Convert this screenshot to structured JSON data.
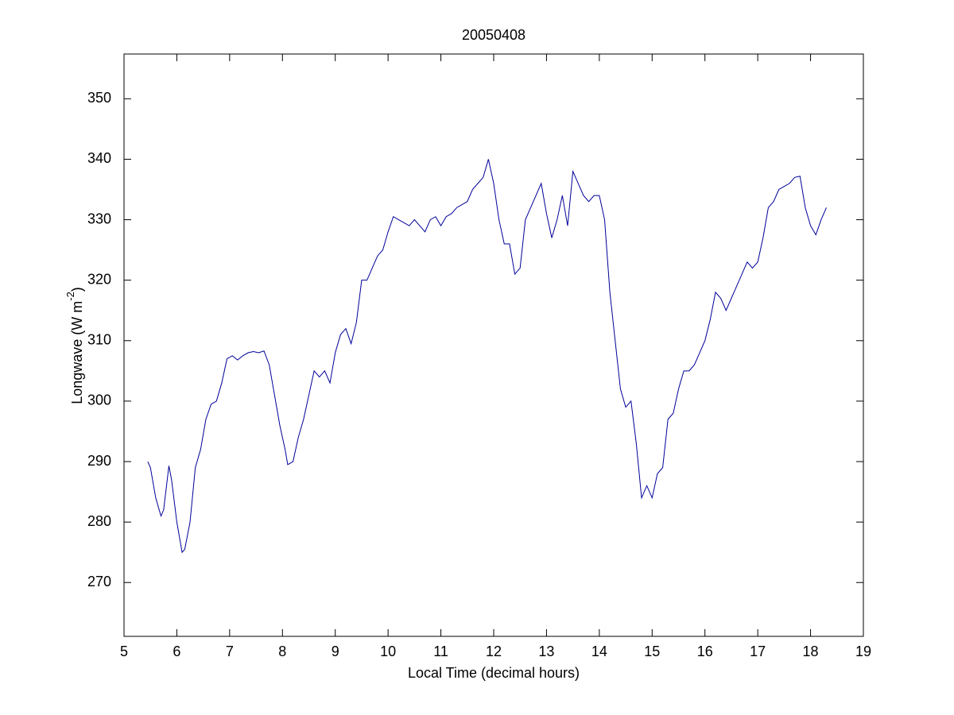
{
  "chart_data": {
    "type": "line",
    "title": "20050408",
    "xlabel": "Local Time (decimal hours)",
    "ylabel_parts": [
      "Longwave (W m",
      "-2",
      ")"
    ],
    "x": [
      5.45,
      5.5,
      5.6,
      5.7,
      5.75,
      5.85,
      5.9,
      6.0,
      6.1,
      6.15,
      6.25,
      6.35,
      6.45,
      6.55,
      6.65,
      6.75,
      6.85,
      6.95,
      7.05,
      7.15,
      7.25,
      7.35,
      7.45,
      7.55,
      7.65,
      7.75,
      7.85,
      7.95,
      8.05,
      8.1,
      8.2,
      8.3,
      8.4,
      8.5,
      8.6,
      8.7,
      8.8,
      8.9,
      9.0,
      9.1,
      9.2,
      9.3,
      9.4,
      9.5,
      9.6,
      9.7,
      9.8,
      9.9,
      10.0,
      10.1,
      10.2,
      10.3,
      10.4,
      10.5,
      10.6,
      10.7,
      10.8,
      10.9,
      11.0,
      11.1,
      11.2,
      11.3,
      11.4,
      11.5,
      11.6,
      11.7,
      11.8,
      11.9,
      12.0,
      12.1,
      12.2,
      12.3,
      12.4,
      12.5,
      12.6,
      12.7,
      12.8,
      12.9,
      13.0,
      13.1,
      13.2,
      13.3,
      13.4,
      13.5,
      13.6,
      13.7,
      13.8,
      13.9,
      14.0,
      14.1,
      14.2,
      14.3,
      14.4,
      14.5,
      14.6,
      14.7,
      14.8,
      14.9,
      15.0,
      15.1,
      15.2,
      15.3,
      15.4,
      15.5,
      15.6,
      15.7,
      15.8,
      15.9,
      16.0,
      16.1,
      16.2,
      16.3,
      16.4,
      16.5,
      16.6,
      16.7,
      16.8,
      16.9,
      17.0,
      17.1,
      17.2,
      17.3,
      17.4,
      17.5,
      17.6,
      17.7,
      17.8,
      17.9,
      18.0,
      18.1,
      18.2,
      18.3
    ],
    "series": [
      {
        "name": "Longwave",
        "color": "#000099",
        "values": [
          290,
          289,
          284,
          281,
          282,
          289.3,
          287,
          280,
          275,
          275.5,
          280,
          289,
          292,
          297,
          299.5,
          300,
          303,
          307,
          307.5,
          306.8,
          307.5,
          308,
          308.2,
          308,
          308.3,
          306,
          301,
          296,
          292,
          289.5,
          290,
          294,
          297,
          301,
          305,
          304,
          305,
          303,
          308,
          311,
          312,
          309.5,
          313,
          320,
          320,
          322,
          324,
          325,
          328,
          330.5,
          330,
          329.5,
          329,
          330,
          329,
          328,
          330,
          330.5,
          329,
          330.5,
          331,
          332,
          332.5,
          333,
          335,
          336,
          337,
          340,
          336,
          330,
          326,
          326,
          321,
          322,
          330,
          332,
          334,
          336,
          331,
          327,
          330,
          334,
          329,
          338,
          336,
          334,
          333,
          334,
          334,
          330,
          318,
          310,
          302,
          299,
          300,
          293,
          284,
          286,
          284,
          288,
          289,
          297,
          298,
          302,
          305,
          305,
          306,
          308,
          310,
          313.5,
          318,
          317,
          315,
          317,
          319,
          321,
          323,
          322,
          323,
          327,
          332,
          333,
          335,
          335.5,
          336,
          337,
          337.2,
          332,
          329,
          327.5,
          330,
          332
        ]
      }
    ],
    "xlim": [
      5,
      19
    ],
    "xticks": [
      5,
      6,
      7,
      8,
      9,
      10,
      11,
      12,
      13,
      14,
      15,
      16,
      17,
      18,
      19
    ],
    "ylim": [
      261.1,
      357.4
    ],
    "yticks": [
      270,
      280,
      290,
      300,
      310,
      320,
      330,
      340,
      350
    ],
    "grid": false
  }
}
